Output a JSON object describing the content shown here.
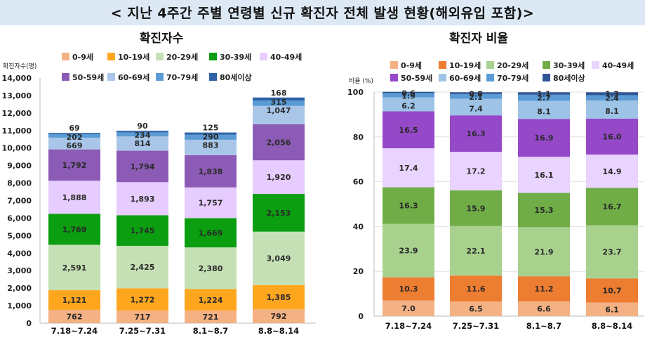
{
  "page_title": "< 지난 4주간 주별 연령별 신규 확진자 전체 발생 현황(해외유입 포함)>",
  "chart_data": [
    {
      "type": "bar",
      "stacked": true,
      "title": "확진자수",
      "ylabel": "확진자수(명)",
      "ylim": [
        0,
        14000
      ],
      "yticks": [
        "0",
        "1,000",
        "2,000",
        "3,000",
        "4,000",
        "5,000",
        "6,000",
        "7,000",
        "8,000",
        "9,000",
        "10,000",
        "11,000",
        "12,000",
        "13,000",
        "14,000"
      ],
      "categories": [
        "7.18~7.24",
        "7.25~7.31",
        "8.1~8.7",
        "8.8~8.14"
      ],
      "series": [
        {
          "name": "0-9세",
          "color": "#f4b183",
          "values": [
            762,
            717,
            721,
            792
          ],
          "labels": [
            "762",
            "717",
            "721",
            "792"
          ]
        },
        {
          "name": "10-19세",
          "color": "#ffa61f",
          "values": [
            1121,
            1272,
            1224,
            1385
          ],
          "labels": [
            "1,121",
            "1,272",
            "1,224",
            "1,385"
          ]
        },
        {
          "name": "20-29세",
          "color": "#c5e0b4",
          "values": [
            2591,
            2425,
            2380,
            3049
          ],
          "labels": [
            "2,591",
            "2,425",
            "2,380",
            "3,049"
          ]
        },
        {
          "name": "30-39세",
          "color": "#0a9e10",
          "values": [
            1769,
            1745,
            1669,
            2153
          ],
          "labels": [
            "1,769",
            "1,745",
            "1,669",
            "2,153"
          ]
        },
        {
          "name": "40-49세",
          "color": "#e6ccff",
          "values": [
            1888,
            1893,
            1757,
            1920
          ],
          "labels": [
            "1,888",
            "1,893",
            "1,757",
            "1,920"
          ]
        },
        {
          "name": "50-59세",
          "color": "#8c5bb5",
          "values": [
            1792,
            1794,
            1838,
            2056
          ],
          "labels": [
            "1,792",
            "1,794",
            "1,838",
            "2,056"
          ]
        },
        {
          "name": "60-69세",
          "color": "#a9c6e8",
          "values": [
            669,
            814,
            883,
            1047
          ],
          "labels": [
            "669",
            "814",
            "883",
            "1,047"
          ]
        },
        {
          "name": "70-79세",
          "color": "#5b9bd5",
          "values": [
            202,
            234,
            290,
            315
          ],
          "labels": [
            "202",
            "234",
            "290",
            "315"
          ]
        },
        {
          "name": "80세이상",
          "color": "#2e62a8",
          "values": [
            69,
            90,
            125,
            168
          ],
          "labels": [
            "69",
            "90",
            "125",
            "168"
          ]
        }
      ]
    },
    {
      "type": "bar",
      "stacked": true,
      "title": "확진자 비율",
      "ylabel": "비율 (%)",
      "ylim": [
        0,
        100
      ],
      "yticks": [
        "0",
        "20",
        "40",
        "60",
        "80",
        "100"
      ],
      "categories": [
        "7.18~7.24",
        "7.25~7.31",
        "8.1~8.7",
        "8.8~8.14"
      ],
      "series": [
        {
          "name": "0-9세",
          "color": "#f4b183",
          "values": [
            7.0,
            6.5,
            6.6,
            6.1
          ],
          "labels": [
            "7.0",
            "6.5",
            "6.6",
            "6.1"
          ]
        },
        {
          "name": "10-19세",
          "color": "#ed7d31",
          "values": [
            10.3,
            11.6,
            11.2,
            10.7
          ],
          "labels": [
            "10.3",
            "11.6",
            "11.2",
            "10.7"
          ]
        },
        {
          "name": "20-29세",
          "color": "#a9d18e",
          "values": [
            23.9,
            22.1,
            21.9,
            23.7
          ],
          "labels": [
            "23.9",
            "22.1",
            "21.9",
            "23.7"
          ]
        },
        {
          "name": "30-39세",
          "color": "#70ad47",
          "values": [
            16.3,
            15.9,
            15.3,
            16.7
          ],
          "labels": [
            "16.3",
            "15.9",
            "15.3",
            "16.7"
          ]
        },
        {
          "name": "40-49세",
          "color": "#e9d3ff",
          "values": [
            17.4,
            17.2,
            16.1,
            14.9
          ],
          "labels": [
            "17.4",
            "17.2",
            "16.1",
            "14.9"
          ]
        },
        {
          "name": "50-59세",
          "color": "#9549c9",
          "values": [
            16.5,
            16.3,
            16.9,
            16.0
          ],
          "labels": [
            "16.5",
            "16.3",
            "16.9",
            "16.0"
          ]
        },
        {
          "name": "60-69세",
          "color": "#9dc3e6",
          "values": [
            6.2,
            7.4,
            8.1,
            8.1
          ],
          "labels": [
            "6.2",
            "7.4",
            "8.1",
            "8.1"
          ]
        },
        {
          "name": "70-79세",
          "color": "#5b9bd5",
          "values": [
            1.9,
            2.1,
            2.7,
            2.4
          ],
          "labels": [
            "1.9",
            "2.1",
            "2.7",
            "2.4"
          ]
        },
        {
          "name": "80세이상",
          "color": "#2f5597",
          "values": [
            0.6,
            0.8,
            1.1,
            1.3
          ],
          "labels": [
            "0.6",
            "0.8",
            "1.1",
            "1.3"
          ]
        }
      ]
    }
  ]
}
